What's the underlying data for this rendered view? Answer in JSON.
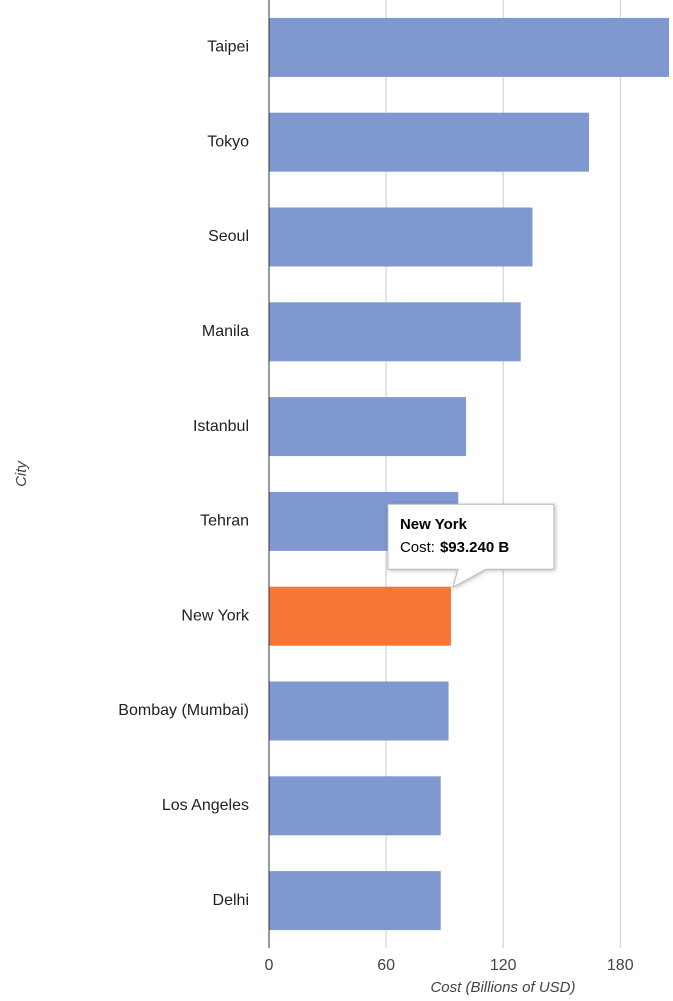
{
  "chart_data": {
    "type": "bar",
    "orientation": "horizontal",
    "x_label": "Cost (Billions of USD)",
    "y_label": "City",
    "categories": [
      "Taipei",
      "Tokyo",
      "Seoul",
      "Manila",
      "Istanbul",
      "Tehran",
      "New York",
      "Bombay (Mumbai)",
      "Los Angeles",
      "Delhi"
    ],
    "values": [
      205,
      164,
      135,
      129,
      101,
      97,
      93.24,
      92,
      88,
      88
    ],
    "colors": [
      "#7f98d0",
      "#7f98d0",
      "#7f98d0",
      "#7f98d0",
      "#7f98d0",
      "#7f98d0",
      "#f77635",
      "#7f98d0",
      "#7f98d0",
      "#7f98d0"
    ],
    "xlim": [
      0,
      206
    ],
    "xticks": [
      0,
      60,
      120,
      180
    ],
    "grid": true,
    "tooltip": {
      "title": "New York",
      "label": "Cost:",
      "value_label": "$93.240 B"
    }
  }
}
